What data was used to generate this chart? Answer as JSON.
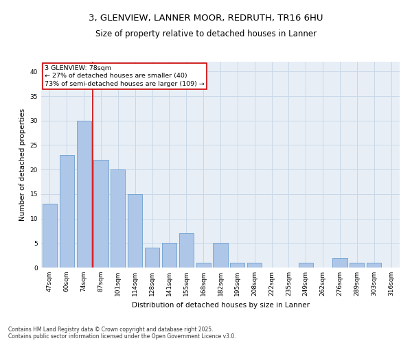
{
  "title1": "3, GLENVIEW, LANNER MOOR, REDRUTH, TR16 6HU",
  "title2": "Size of property relative to detached houses in Lanner",
  "xlabel": "Distribution of detached houses by size in Lanner",
  "ylabel": "Number of detached properties",
  "categories": [
    "47sqm",
    "60sqm",
    "74sqm",
    "87sqm",
    "101sqm",
    "114sqm",
    "128sqm",
    "141sqm",
    "155sqm",
    "168sqm",
    "182sqm",
    "195sqm",
    "208sqm",
    "222sqm",
    "235sqm",
    "249sqm",
    "262sqm",
    "276sqm",
    "289sqm",
    "303sqm",
    "316sqm"
  ],
  "values": [
    13,
    23,
    30,
    22,
    20,
    15,
    4,
    5,
    7,
    1,
    5,
    1,
    1,
    0,
    0,
    1,
    0,
    2,
    1,
    1,
    0
  ],
  "bar_color": "#aec6e8",
  "bar_edge_color": "#6a9fd0",
  "vline_x_index": 2,
  "vline_color": "#cc0000",
  "annotation_text": "3 GLENVIEW: 78sqm\n← 27% of detached houses are smaller (40)\n73% of semi-detached houses are larger (109) →",
  "annotation_box_color": "#ffffff",
  "annotation_box_edge": "#cc0000",
  "ylim": [
    0,
    42
  ],
  "yticks": [
    0,
    5,
    10,
    15,
    20,
    25,
    30,
    35,
    40
  ],
  "grid_color": "#c8d8e8",
  "background_color": "#e8eef5",
  "footnote": "Contains HM Land Registry data © Crown copyright and database right 2025.\nContains public sector information licensed under the Open Government Licence v3.0.",
  "title_fontsize": 9.5,
  "subtitle_fontsize": 8.5,
  "tick_fontsize": 6.5,
  "ylabel_fontsize": 7.5,
  "xlabel_fontsize": 7.5,
  "annot_fontsize": 6.8,
  "footnote_fontsize": 5.5
}
